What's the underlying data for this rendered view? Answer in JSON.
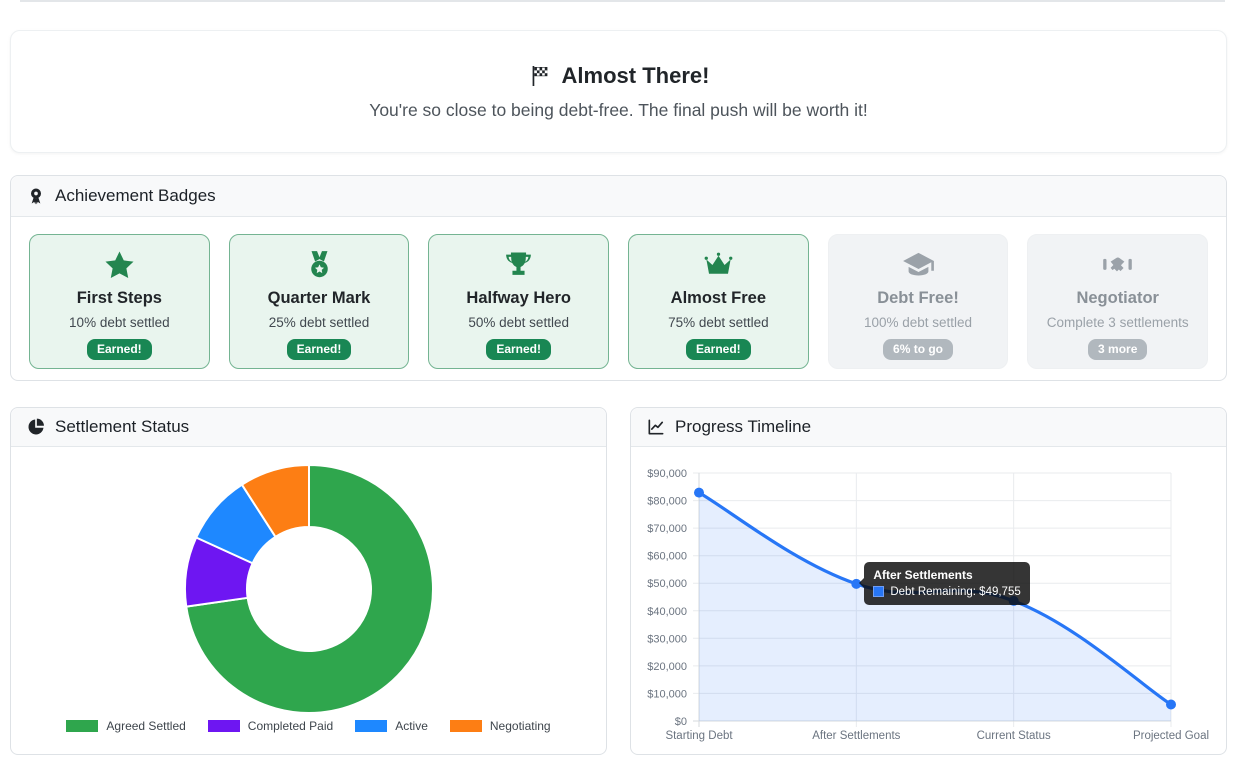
{
  "banner": {
    "icon": "checkered-flag-icon",
    "title": "Almost There!",
    "subtitle": "You're so close to being debt-free. The final push will be worth it!"
  },
  "achievements": {
    "icon": "medal-icon",
    "title": "Achievement Badges",
    "badges": [
      {
        "icon": "star-icon",
        "name": "First Steps",
        "description": "10% debt settled",
        "status": "Earned!",
        "earned": true
      },
      {
        "icon": "medal-icon",
        "name": "Quarter Mark",
        "description": "25% debt settled",
        "status": "Earned!",
        "earned": true
      },
      {
        "icon": "trophy-icon",
        "name": "Halfway Hero",
        "description": "50% debt settled",
        "status": "Earned!",
        "earned": true
      },
      {
        "icon": "crown-icon",
        "name": "Almost Free",
        "description": "75% debt settled",
        "status": "Earned!",
        "earned": true
      },
      {
        "icon": "graduation-cap-icon",
        "name": "Debt Free!",
        "description": "100% debt settled",
        "status": "6% to go",
        "earned": false
      },
      {
        "icon": "handshake-icon",
        "name": "Negotiator",
        "description": "Complete 3 settlements",
        "status": "3 more",
        "earned": false
      }
    ]
  },
  "settlement": {
    "icon": "pie-chart-icon",
    "title": "Settlement Status"
  },
  "timeline": {
    "icon": "line-chart-icon",
    "title": "Progress Timeline"
  },
  "colors": {
    "brand_green": "#198754",
    "earned_card_bg": "#e9f5ee",
    "earned_card_border": "#74b492",
    "locked_pill_bg": "#b1b8be"
  },
  "chart_data": [
    {
      "type": "doughnut",
      "title": "Settlement Status",
      "labels": [
        "Agreed Settled",
        "Completed Paid",
        "Active",
        "Negotiating"
      ],
      "values": [
        8,
        1,
        1,
        1
      ],
      "colors": [
        "#2fa64d",
        "#6e16f2",
        "#1e88ff",
        "#fd7e14"
      ],
      "cutout_percent": 50,
      "legend_position": "bottom"
    },
    {
      "type": "line",
      "title": "Progress Timeline",
      "categories": [
        "Starting Debt",
        "After Settlements",
        "Current Status",
        "Projected Goal"
      ],
      "series": [
        {
          "name": "Debt Remaining",
          "values": [
            82900,
            49755,
            43600,
            6000
          ],
          "color": "#2776f6",
          "fill": "rgba(39,118,246,0.12)"
        }
      ],
      "ylim": [
        0,
        90000
      ],
      "ytick_step": 10000,
      "ytick_labels": [
        "$0",
        "$10,000",
        "$20,000",
        "$30,000",
        "$40,000",
        "$50,000",
        "$60,000",
        "$70,000",
        "$80,000",
        "$90,000"
      ],
      "grid": true,
      "tooltip": {
        "title": "After Settlements",
        "label": "Debt Remaining: $49,755",
        "point_index": 1
      }
    }
  ]
}
